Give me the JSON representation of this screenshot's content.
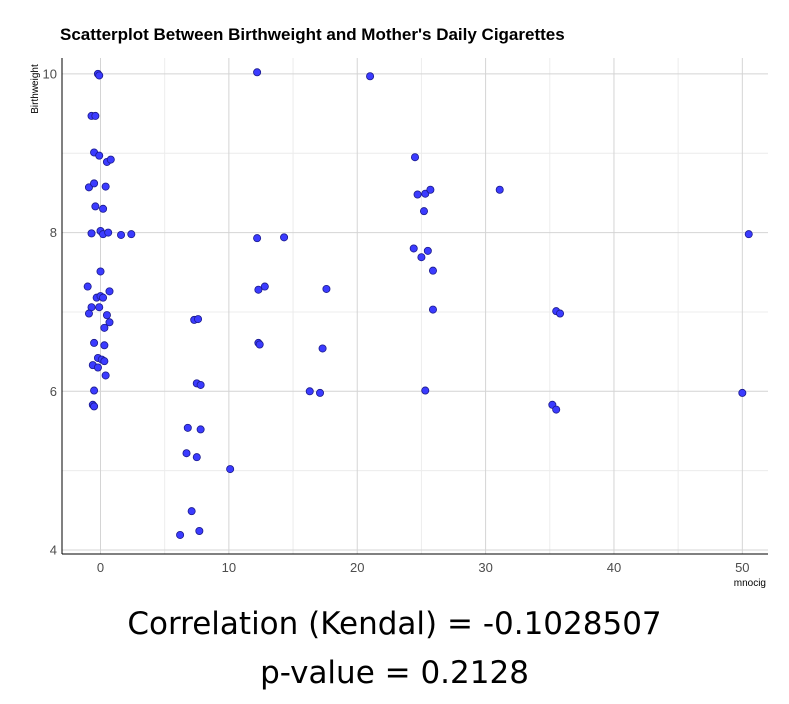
{
  "chart_data": {
    "type": "scatter",
    "title": "Scatterplot Between Birthweight and Mother's Daily Cigarettes",
    "xlabel": "mnocig",
    "ylabel": "Birthweight",
    "xlim": [
      -3,
      52
    ],
    "ylim": [
      3.95,
      10.2
    ],
    "x_ticks": [
      0,
      10,
      20,
      30,
      40,
      50
    ],
    "x_tick_labels": [
      "0",
      "10",
      "20",
      "30",
      "40",
      "50"
    ],
    "y_ticks": [
      4,
      6,
      8,
      10
    ],
    "y_tick_labels": [
      "4",
      "6",
      "8",
      "10"
    ],
    "grid": true,
    "series": [
      {
        "color": "#3b3bff",
        "points": [
          {
            "x": -0.2,
            "y": 10.0
          },
          {
            "x": -0.1,
            "y": 9.98
          },
          {
            "x": -0.7,
            "y": 9.47
          },
          {
            "x": -0.4,
            "y": 9.47
          },
          {
            "x": -0.5,
            "y": 9.01
          },
          {
            "x": -0.1,
            "y": 8.97
          },
          {
            "x": 0.5,
            "y": 8.89
          },
          {
            "x": 0.8,
            "y": 8.92
          },
          {
            "x": -0.9,
            "y": 8.57
          },
          {
            "x": -0.5,
            "y": 8.62
          },
          {
            "x": 0.4,
            "y": 8.58
          },
          {
            "x": -0.4,
            "y": 8.33
          },
          {
            "x": 0.2,
            "y": 8.3
          },
          {
            "x": -0.7,
            "y": 7.99
          },
          {
            "x": 0.0,
            "y": 8.02
          },
          {
            "x": 0.2,
            "y": 7.98
          },
          {
            "x": 0.6,
            "y": 8.0
          },
          {
            "x": 1.6,
            "y": 7.97
          },
          {
            "x": 2.4,
            "y": 7.98
          },
          {
            "x": 0.0,
            "y": 7.51
          },
          {
            "x": -1.0,
            "y": 7.32
          },
          {
            "x": -0.3,
            "y": 7.18
          },
          {
            "x": 0.0,
            "y": 7.2
          },
          {
            "x": 0.2,
            "y": 7.18
          },
          {
            "x": 0.7,
            "y": 7.26
          },
          {
            "x": -0.7,
            "y": 7.06
          },
          {
            "x": -0.1,
            "y": 7.06
          },
          {
            "x": -0.9,
            "y": 6.98
          },
          {
            "x": 0.5,
            "y": 6.96
          },
          {
            "x": 0.7,
            "y": 6.87
          },
          {
            "x": 0.3,
            "y": 6.8
          },
          {
            "x": -0.5,
            "y": 6.61
          },
          {
            "x": 0.3,
            "y": 6.58
          },
          {
            "x": -0.2,
            "y": 6.42
          },
          {
            "x": 0.1,
            "y": 6.4
          },
          {
            "x": 0.3,
            "y": 6.38
          },
          {
            "x": -0.6,
            "y": 6.33
          },
          {
            "x": -0.2,
            "y": 6.3
          },
          {
            "x": 0.4,
            "y": 6.2
          },
          {
            "x": -0.5,
            "y": 6.01
          },
          {
            "x": -0.6,
            "y": 5.83
          },
          {
            "x": -0.5,
            "y": 5.81
          },
          {
            "x": 7.3,
            "y": 6.9
          },
          {
            "x": 7.6,
            "y": 6.91
          },
          {
            "x": 7.5,
            "y": 6.1
          },
          {
            "x": 7.8,
            "y": 6.08
          },
          {
            "x": 6.8,
            "y": 5.54
          },
          {
            "x": 7.8,
            "y": 5.52
          },
          {
            "x": 6.7,
            "y": 5.22
          },
          {
            "x": 7.5,
            "y": 5.17
          },
          {
            "x": 10.1,
            "y": 5.02
          },
          {
            "x": 7.1,
            "y": 4.49
          },
          {
            "x": 7.7,
            "y": 4.24
          },
          {
            "x": 6.2,
            "y": 4.19
          },
          {
            "x": 12.2,
            "y": 10.02
          },
          {
            "x": 12.2,
            "y": 7.93
          },
          {
            "x": 14.3,
            "y": 7.94
          },
          {
            "x": 12.3,
            "y": 7.28
          },
          {
            "x": 12.8,
            "y": 7.32
          },
          {
            "x": 12.3,
            "y": 6.61
          },
          {
            "x": 12.4,
            "y": 6.59
          },
          {
            "x": 17.6,
            "y": 7.29
          },
          {
            "x": 17.3,
            "y": 6.54
          },
          {
            "x": 16.3,
            "y": 6.0
          },
          {
            "x": 17.1,
            "y": 5.98
          },
          {
            "x": 21.0,
            "y": 9.97
          },
          {
            "x": 24.5,
            "y": 8.95
          },
          {
            "x": 24.7,
            "y": 8.48
          },
          {
            "x": 25.3,
            "y": 8.49
          },
          {
            "x": 25.7,
            "y": 8.54
          },
          {
            "x": 25.2,
            "y": 8.27
          },
          {
            "x": 24.4,
            "y": 7.8
          },
          {
            "x": 25.5,
            "y": 7.77
          },
          {
            "x": 25.0,
            "y": 7.69
          },
          {
            "x": 25.9,
            "y": 7.52
          },
          {
            "x": 25.9,
            "y": 7.03
          },
          {
            "x": 25.3,
            "y": 6.01
          },
          {
            "x": 31.1,
            "y": 8.54
          },
          {
            "x": 35.5,
            "y": 7.01
          },
          {
            "x": 35.8,
            "y": 6.98
          },
          {
            "x": 35.2,
            "y": 5.83
          },
          {
            "x": 35.5,
            "y": 5.77
          },
          {
            "x": 50.5,
            "y": 7.98
          },
          {
            "x": 50.0,
            "y": 5.98
          }
        ]
      }
    ]
  },
  "stats": {
    "correlation_text": "Correlation (Kendal) = -0.1028507",
    "pvalue_text": "p-value = 0.2128"
  }
}
